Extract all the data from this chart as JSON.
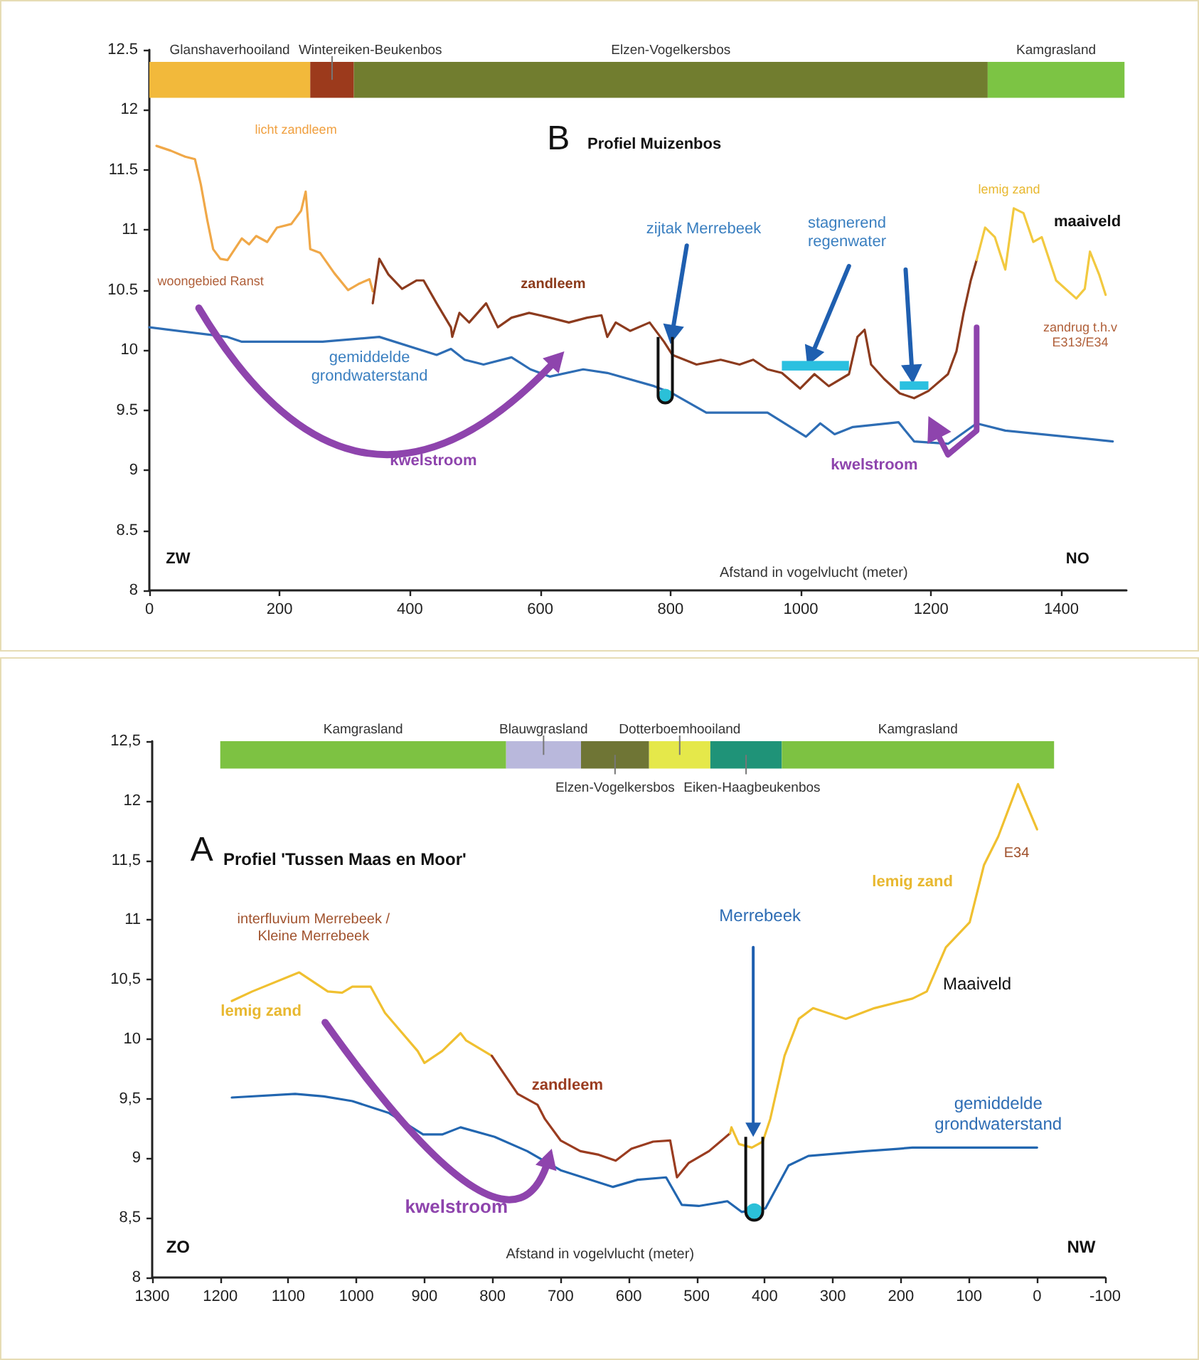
{
  "chart_data": [
    {
      "type": "line",
      "title": "Profiel Muizenbos",
      "xlabel": "Afstand in vogelvlucht (meter)",
      "marker": "none",
      "xlim": [
        0,
        1500
      ],
      "xticks": [
        0,
        200,
        400,
        600,
        800,
        1000,
        1200,
        1400
      ],
      "ylim": [
        8,
        12.5
      ],
      "yticks": [
        8,
        8.5,
        9,
        9.5,
        10,
        10.5,
        11,
        11.5,
        12,
        12.5
      ],
      "series": [
        {
          "color": "#f0a848",
          "x": [
            11,
            33,
            55,
            70,
            79,
            89,
            98,
            109,
            120,
            131,
            142,
            153,
            164,
            181,
            196,
            218,
            233,
            240,
            247,
            262,
            284,
            305,
            321,
            338,
            343
          ],
          "values": [
            11.7,
            11.66,
            11.61,
            11.59,
            11.38,
            11.08,
            10.84,
            10.76,
            10.75,
            10.84,
            10.93,
            10.88,
            10.95,
            10.9,
            11.02,
            11.05,
            11.16,
            11.32,
            10.84,
            10.81,
            10.64,
            10.5,
            10.55,
            10.59,
            10.49
          ]
        },
        {
          "color": "#8c3b1e",
          "x": [
            343,
            353,
            367,
            388,
            410,
            421,
            441,
            463,
            465,
            476,
            491,
            517,
            535,
            556,
            583,
            615,
            644,
            672,
            694,
            703,
            716,
            738,
            768,
            790,
            803,
            840,
            877,
            906,
            927,
            949,
            971,
            999,
            1021,
            1043,
            1074,
            1087,
            1098,
            1108,
            1128,
            1152,
            1174,
            1196,
            1226,
            1239,
            1250,
            1261,
            1270
          ],
          "values": [
            10.39,
            10.76,
            10.63,
            10.51,
            10.58,
            10.58,
            10.39,
            10.19,
            10.11,
            10.31,
            10.23,
            10.39,
            10.19,
            10.27,
            10.31,
            10.27,
            10.23,
            10.27,
            10.29,
            10.11,
            10.23,
            10.16,
            10.23,
            10.07,
            9.96,
            9.88,
            9.92,
            9.88,
            9.92,
            9.84,
            9.81,
            9.68,
            9.8,
            9.7,
            9.8,
            10.11,
            10.17,
            9.88,
            9.76,
            9.64,
            9.6,
            9.66,
            9.8,
            9.99,
            10.31,
            10.58,
            10.75
          ]
        },
        {
          "color": "#f2c940",
          "x": [
            1270,
            1283,
            1298,
            1314,
            1327,
            1342,
            1357,
            1370,
            1392,
            1423,
            1436,
            1444,
            1458,
            1468
          ],
          "values": [
            10.75,
            11.02,
            10.94,
            10.67,
            11.18,
            11.14,
            10.9,
            10.94,
            10.58,
            10.43,
            10.51,
            10.82,
            10.63,
            10.46
          ]
        },
        {
          "color": "#2e6db4",
          "x": [
            0,
            120,
            142,
            266,
            353,
            441,
            463,
            484,
            513,
            556,
            585,
            615,
            666,
            703,
            775,
            803,
            855,
            949,
            1008,
            1030,
            1052,
            1080,
            1150,
            1174,
            1226,
            1270,
            1314,
            1479
          ],
          "values": [
            10.19,
            10.11,
            10.07,
            10.07,
            10.11,
            9.96,
            10.01,
            9.92,
            9.88,
            9.94,
            9.84,
            9.78,
            9.84,
            9.81,
            9.7,
            9.64,
            9.48,
            9.48,
            9.28,
            9.39,
            9.3,
            9.36,
            9.4,
            9.24,
            9.22,
            9.39,
            9.33,
            9.24
          ]
        }
      ],
      "bands": [
        {
          "axis": "x",
          "from": 0,
          "to": 247,
          "label": "Glanshaverhooiland",
          "color": "#f2b93b"
        },
        {
          "axis": "x",
          "from": 247,
          "to": 314,
          "label": "Wintereiken-Beukenbos",
          "color": "#9c3a1c"
        },
        {
          "axis": "x",
          "from": 314,
          "to": 1287,
          "label": "Elzen-Vogelkersbos",
          "color": "#717d2f"
        },
        {
          "axis": "x",
          "from": 1287,
          "to": 1497,
          "label": "Kamgrasland",
          "color": "#7cc444"
        }
      ],
      "annotations": [
        "B",
        "licht zandleem",
        "woongebied Ranst",
        "zandleem",
        "zijtak Merrebeek",
        "stagnerend regenwater",
        "lemig zand",
        "maaiveld",
        "zandrug t.h.v E313/E34",
        "gemiddelde grondwaterstand",
        "kwelstroom",
        "kwelstroom",
        "ZW",
        "NO"
      ]
    },
    {
      "type": "line",
      "title": "Profiel 'Tussen Maas en Moor'",
      "xlabel": "Afstand in vogelvlucht (meter)",
      "marker": "none",
      "xlim": [
        1300,
        -100
      ],
      "xticks": [
        1300,
        1200,
        1100,
        1000,
        900,
        800,
        700,
        600,
        500,
        400,
        300,
        200,
        100,
        0,
        -100
      ],
      "ylim": [
        8,
        12.5
      ],
      "yticks": [
        8,
        {
          "value": 8.5,
          "label": "8,5"
        },
        9,
        {
          "value": 9.5,
          "label": "9,5"
        },
        10,
        {
          "value": 10.5,
          "label": "10,5"
        },
        11,
        {
          "value": 11.5,
          "label": "11,5"
        },
        12,
        {
          "value": 12.5,
          "label": "12,5"
        }
      ],
      "series": [
        {
          "color": "#f0c030",
          "x": [
            1183,
            1153,
            1084,
            1042,
            1021,
            1006,
            979,
            958,
            910,
            900,
            874,
            847,
            839,
            801
          ],
          "values": [
            10.32,
            10.4,
            10.56,
            10.4,
            10.39,
            10.44,
            10.44,
            10.22,
            9.9,
            9.8,
            9.9,
            10.05,
            9.99,
            9.86
          ]
        },
        {
          "color": "#9a3c20",
          "x": [
            801,
            763,
            734,
            723,
            700,
            671,
            644,
            619,
            596,
            564,
            539,
            529,
            512,
            482,
            451
          ],
          "values": [
            9.86,
            9.54,
            9.45,
            9.33,
            9.15,
            9.06,
            9.03,
            8.98,
            9.08,
            9.14,
            9.15,
            8.84,
            8.96,
            9.06,
            9.21
          ]
        },
        {
          "color": "#f0c030",
          "x": [
            451,
            449,
            438,
            419,
            403,
            392,
            371,
            350,
            329,
            281,
            239,
            183,
            162,
            134,
            99,
            78,
            57,
            28,
            0
          ],
          "values": [
            9.21,
            9.26,
            9.12,
            9.09,
            9.14,
            9.33,
            9.86,
            10.17,
            10.26,
            10.17,
            10.26,
            10.34,
            10.4,
            10.77,
            10.98,
            11.46,
            11.7,
            12.14,
            11.76
          ]
        },
        {
          "color": "#2266b0",
          "x": [
            1183,
            1090,
            1048,
            1006,
            952,
            902,
            874,
            847,
            797,
            749,
            700,
            623,
            587,
            545,
            522,
            497,
            455,
            434,
            399,
            365,
            336,
            252,
            204,
            183,
            0
          ],
          "values": [
            9.51,
            9.54,
            9.52,
            9.48,
            9.38,
            9.2,
            9.2,
            9.26,
            9.18,
            9.06,
            8.9,
            8.76,
            8.82,
            8.84,
            8.61,
            8.6,
            8.64,
            8.55,
            8.58,
            8.94,
            9.02,
            9.06,
            9.08,
            9.09,
            9.09
          ]
        }
      ],
      "bands": [
        {
          "axis": "x",
          "from": 1200,
          "to": 780,
          "label": "Kamgrasland",
          "color": "#7dc242"
        },
        {
          "axis": "x",
          "from": 780,
          "to": 670,
          "label": "Blauwgrasland",
          "color": "#b9b8dc"
        },
        {
          "axis": "x",
          "from": 670,
          "to": 570,
          "label": "Elzen-Vogelkersbos",
          "color": "#6f7535"
        },
        {
          "axis": "x",
          "from": 570,
          "to": 480,
          "label": "Dotterboemhooiland",
          "color": "#e5e84a"
        },
        {
          "axis": "x",
          "from": 480,
          "to": 375,
          "label": "Eiken-Haagbeukenbos",
          "color": "#1f9378"
        },
        {
          "axis": "x",
          "from": 375,
          "to": -25,
          "label": "Kamgrasland",
          "color": "#7dc242"
        }
      ],
      "annotations": [
        "A",
        "interfluvium Merrebeek / Kleine Merrebeek",
        "lemig zand",
        "zandleem",
        "lemig zand",
        "E34",
        "Merrebeek",
        "Maaiveld",
        "gemiddelde grondwaterstand",
        "kwelstroom",
        "ZO",
        "NW"
      ]
    }
  ]
}
